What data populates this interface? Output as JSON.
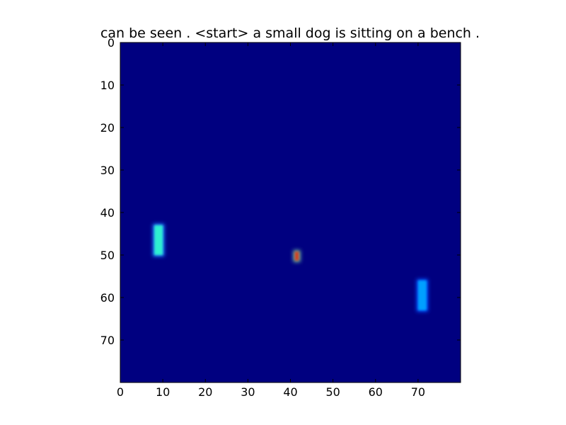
{
  "chart_data": {
    "type": "heatmap",
    "title": "can be seen . <start> a small dog is sitting on a bench .",
    "xlabel": "",
    "ylabel": "",
    "xlim": [
      0,
      80
    ],
    "ylim": [
      80,
      0
    ],
    "y_inverted": true,
    "grid": false,
    "colormap": "jet",
    "background_value": 0.0,
    "x_ticks": [
      0,
      10,
      20,
      30,
      40,
      50,
      60,
      70
    ],
    "y_ticks": [
      0,
      10,
      20,
      30,
      40,
      50,
      60,
      70
    ],
    "hotspots": [
      {
        "x": 9,
        "y_start": 43,
        "y_end": 50,
        "color": "#2ef0d0",
        "glow": "#1a7cff"
      },
      {
        "x": 71,
        "y_start": 56,
        "y_end": 63,
        "color": "#00a0ff",
        "glow": "#0050ff"
      },
      {
        "x": 41.5,
        "y_start": 49.2,
        "y_end": 51.3,
        "color": "#d04020",
        "glow": "#70c0a0"
      }
    ],
    "colors": {
      "background": "#000080",
      "frame": "#000000"
    }
  }
}
